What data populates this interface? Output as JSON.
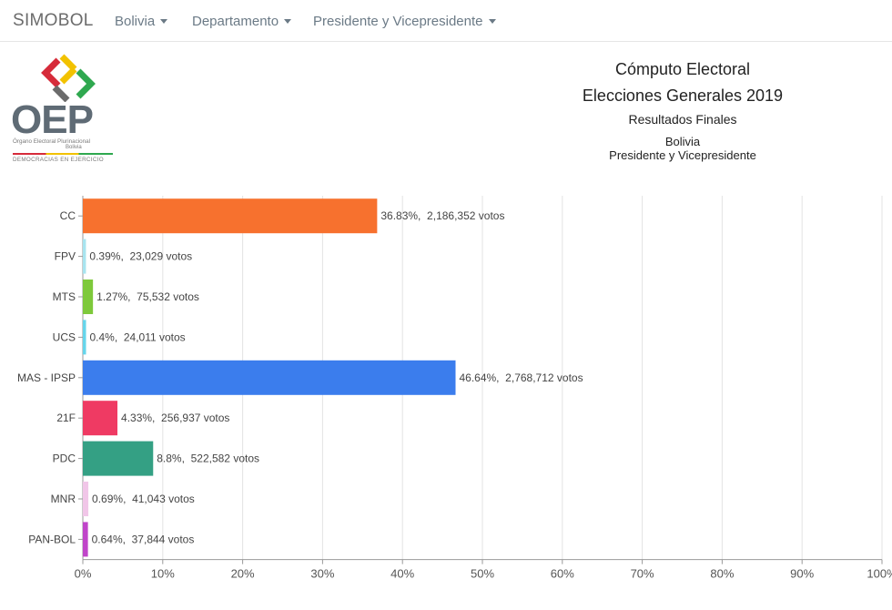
{
  "navbar": {
    "brand": "SIMOBOL",
    "items": [
      {
        "label": "Bolivia"
      },
      {
        "label": "Departamento"
      },
      {
        "label": "Presidente y Vicepresidente"
      }
    ]
  },
  "logo": {
    "text": "OEP",
    "subtitle": "Órgano Electoral Plurinacional",
    "subtitle2": "Bolivia",
    "tagline": "DEMOCRACIAS EN EJERCICIO"
  },
  "header": {
    "line1": "Cómputo Electoral",
    "line2": "Elecciones Generales 2019",
    "line3": "Resultados Finales",
    "line4": "Bolivia",
    "line5": "Presidente y Vicepresidente"
  },
  "chart_data": {
    "type": "bar",
    "orientation": "horizontal",
    "categories": [
      "CC",
      "FPV",
      "MTS",
      "UCS",
      "MAS - IPSP",
      "21F",
      "PDC",
      "MNR",
      "PAN-BOL"
    ],
    "values": [
      36.83,
      0.39,
      1.27,
      0.4,
      46.64,
      4.33,
      8.8,
      0.69,
      0.64
    ],
    "data_labels": [
      "36.83%,  2,186,352 votos",
      "0.39%,  23,029 votos",
      "1.27%,  75,532 votos",
      "0.4%,  24,011 votos",
      "46.64%,  2,768,712 votos",
      "4.33%,  256,937 votos",
      "8.8%,  522,582 votos",
      "0.69%,  41,043 votos",
      "0.64%,  37,844 votos"
    ],
    "colors": [
      "#f7712e",
      "#a8e4ef",
      "#7ec93b",
      "#66d5eb",
      "#3b7ded",
      "#ef3a63",
      "#34a084",
      "#f1c6e8",
      "#c045c9"
    ],
    "xlim": [
      0,
      100
    ],
    "xticks": [
      "0%",
      "10%",
      "20%",
      "30%",
      "40%",
      "50%",
      "60%",
      "70%",
      "80%",
      "90%",
      "100%"
    ],
    "grid": true,
    "legend": "none"
  }
}
